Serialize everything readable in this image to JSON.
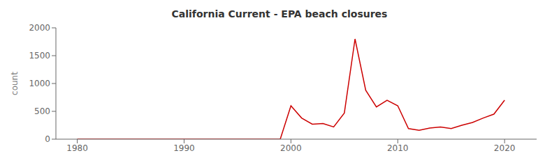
{
  "chart_data": {
    "type": "line",
    "title": "California Current - EPA beach closures",
    "ylabel": "count",
    "x": [
      1980,
      1981,
      1982,
      1983,
      1984,
      1985,
      1986,
      1987,
      1988,
      1989,
      1990,
      1991,
      1992,
      1993,
      1994,
      1995,
      1996,
      1997,
      1998,
      1999,
      2000,
      2001,
      2002,
      2003,
      2004,
      2005,
      2006,
      2007,
      2008,
      2009,
      2010,
      2011,
      2012,
      2013,
      2014,
      2015,
      2016,
      2017,
      2018,
      2019,
      2020
    ],
    "values": [
      0,
      0,
      0,
      0,
      0,
      0,
      0,
      0,
      0,
      0,
      0,
      0,
      0,
      0,
      0,
      0,
      0,
      0,
      0,
      0,
      600,
      380,
      270,
      280,
      220,
      470,
      1800,
      880,
      580,
      700,
      600,
      190,
      160,
      200,
      220,
      190,
      250,
      300,
      380,
      450,
      700
    ],
    "color": "#cc0000",
    "xlim": [
      1978,
      2023
    ],
    "xticks": [
      1980,
      1990,
      2000,
      2010,
      2020
    ],
    "ylim": [
      0,
      2000
    ],
    "yticks": [
      0,
      500,
      1000,
      1500,
      2000
    ],
    "grid": false
  }
}
